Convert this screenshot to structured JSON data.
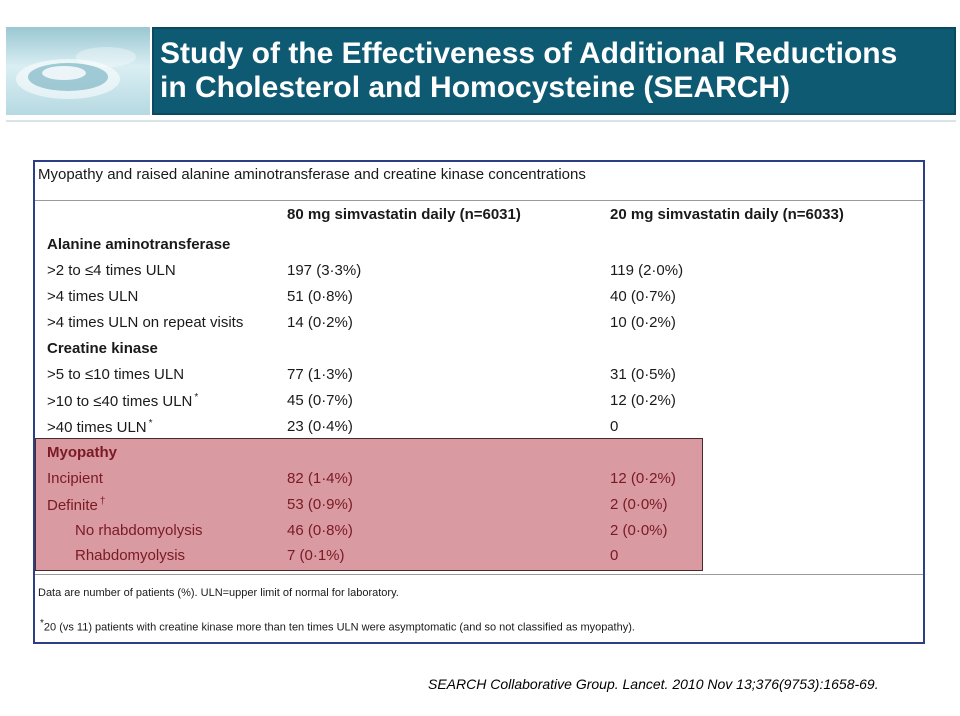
{
  "header": {
    "title_line1": "Study of the Effectiveness of Additional Reductions",
    "title_line2": "in Cholesterol and Homocysteine (SEARCH)"
  },
  "table": {
    "caption": "Myopathy and raised alanine aminotransferase and creatine kinase concentrations",
    "columns": [
      "80 mg simvastatin daily (n=6031)",
      "20 mg simvastatin daily (n=6033)"
    ],
    "sections": [
      {
        "title": "Alanine aminotransferase",
        "rows": [
          {
            "label": ">2 to ≤4 times ULN",
            "sup": "",
            "v80": "197 (3·3%)",
            "v20": "119 (2·0%)"
          },
          {
            "label": ">4 times ULN",
            "sup": "",
            "v80": "51 (0·8%)",
            "v20": "40 (0·7%)"
          },
          {
            "label": ">4 times ULN on repeat visits",
            "sup": "",
            "v80": "14 (0·2%)",
            "v20": "10 (0·2%)"
          }
        ]
      },
      {
        "title": "Creatine kinase",
        "rows": [
          {
            "label": ">5 to ≤10 times ULN",
            "sup": "",
            "v80": "77 (1·3%)",
            "v20": "31 (0·5%)"
          },
          {
            "label": ">10 to ≤40 times ULN",
            "sup": "*",
            "v80": "45 (0·7%)",
            "v20": "12 (0·2%)"
          },
          {
            "label": ">40 times ULN",
            "sup": "*",
            "v80": "23 (0·4%)",
            "v20": "0"
          }
        ]
      },
      {
        "title": "Myopathy",
        "rows": [
          {
            "label": "Incipient",
            "sup": "",
            "v80": "82 (1·4%)",
            "v20": "12 (0·2%)"
          },
          {
            "label": "Definite",
            "sup": "†",
            "v80": "53 (0·9%)",
            "v20": "2 (0·0%)"
          },
          {
            "label": "No rhabdomyolysis",
            "sup": "",
            "v80": "46 (0·8%)",
            "v20": "2 (0·0%)"
          },
          {
            "label": "Rhabdomyolysis",
            "sup": "",
            "v80": "7 (0·1%)",
            "v20": "0"
          }
        ]
      }
    ],
    "footnote1": "Data are number of patients (%). ULN=upper limit of normal for laboratory.",
    "footnote2_mark": "*",
    "footnote2": "20 (vs 11) patients with creatine kinase more than ten times ULN were asymptomatic (and so not classified as myopathy)."
  },
  "citation": "SEARCH Collaborative Group. Lancet. 2010 Nov 13;376(9753):1658-69.",
  "colors": {
    "title_bar": "#0f5a73",
    "panel_border": "#2c3f86",
    "myopathy_highlight": "#d99aa1"
  }
}
